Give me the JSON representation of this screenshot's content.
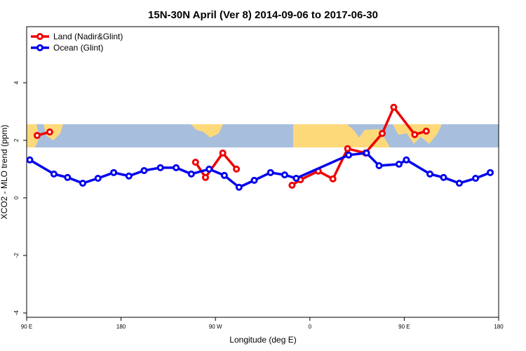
{
  "chart_data": {
    "type": "line",
    "title": "15N-30N April (Ver 8)   2014-09-06 to 2017-06-30",
    "xlabel": "Longitude (deg E)",
    "ylabel": "XCO2 - MLO trend (ppm)",
    "xlim": [
      90,
      540
    ],
    "xticks": [
      {
        "value": 90,
        "label": "90 E"
      },
      {
        "value": 180,
        "label": "180"
      },
      {
        "value": 270,
        "label": "90 W"
      },
      {
        "value": 360,
        "label": "0"
      },
      {
        "value": 450,
        "label": "90 E"
      },
      {
        "value": 540,
        "label": "180"
      }
    ],
    "ylim": [
      -4.15,
      5.95
    ],
    "yticks": [
      -4,
      -2,
      0,
      2,
      4
    ],
    "legend": "top-left",
    "series": [
      {
        "name": "Land (Nadir&Glint)",
        "color": "#ee0000",
        "x": [
          100,
          112,
          null,
          251,
          260.5,
          277,
          290,
          null,
          343,
          351,
          368,
          382,
          396,
          413,
          429,
          440,
          460,
          471
        ],
        "values": [
          2.17,
          2.29,
          null,
          1.24,
          0.71,
          1.56,
          1.0,
          null,
          0.44,
          0.63,
          0.93,
          0.66,
          1.71,
          1.56,
          2.24,
          3.15,
          2.2,
          2.32
        ]
      },
      {
        "name": "Ocean (Glint)",
        "color": "#0000ee",
        "x": [
          93,
          116,
          129,
          143.5,
          158,
          173,
          187.5,
          202,
          217.5,
          232.5,
          247,
          264,
          278.5,
          292.5,
          307,
          322.5,
          336,
          347,
          397,
          414,
          426,
          445,
          452,
          474.5,
          487.5,
          502.5,
          518,
          532
        ],
        "values": [
          1.32,
          0.83,
          0.71,
          0.51,
          0.68,
          0.88,
          0.76,
          0.95,
          1.05,
          1.05,
          0.83,
          1.0,
          0.78,
          0.37,
          0.61,
          0.88,
          0.8,
          0.68,
          1.49,
          1.56,
          1.12,
          1.17,
          1.32,
          0.83,
          0.71,
          0.51,
          0.68,
          0.88
        ]
      }
    ]
  }
}
